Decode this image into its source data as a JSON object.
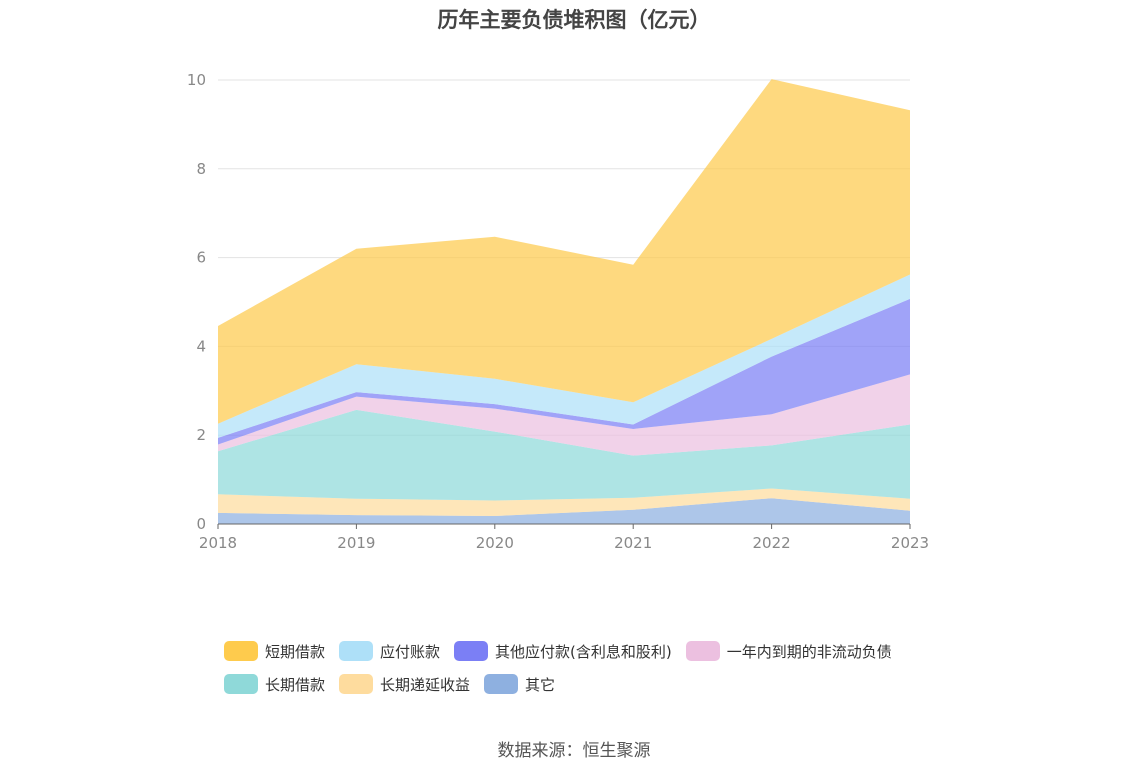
{
  "title": "历年主要负债堆积图（亿元）",
  "source": "数据来源：恒生聚源",
  "chart_data": {
    "type": "area",
    "stacked": true,
    "categories": [
      "2018",
      "2019",
      "2020",
      "2021",
      "2022",
      "2023"
    ],
    "ylim": [
      0,
      10
    ],
    "yticks": [
      "0",
      "2",
      "4",
      "6",
      "8",
      "10"
    ],
    "grid": true,
    "legend_position": "bottom",
    "series": [
      {
        "name": "其它",
        "color": "#8eb0e0",
        "values": [
          0.25,
          0.2,
          0.18,
          0.32,
          0.58,
          0.3
        ]
      },
      {
        "name": "长期递延收益",
        "color": "#fedc9e",
        "values": [
          0.42,
          0.37,
          0.35,
          0.27,
          0.22,
          0.27
        ]
      },
      {
        "name": "长期借款",
        "color": "#8fd9d9",
        "values": [
          0.97,
          2.0,
          1.55,
          0.95,
          0.97,
          1.67
        ]
      },
      {
        "name": "一年内到期的非流动负债",
        "color": "#ecc0e0",
        "values": [
          0.15,
          0.3,
          0.52,
          0.6,
          0.7,
          1.13
        ]
      },
      {
        "name": "其他应付款(含利息和股利)",
        "color": "#7b7ff5",
        "values": [
          0.15,
          0.1,
          0.1,
          0.1,
          1.3,
          1.7
        ]
      },
      {
        "name": "应付账款",
        "color": "#aee0f8",
        "values": [
          0.32,
          0.63,
          0.57,
          0.5,
          0.4,
          0.55
        ]
      },
      {
        "name": "短期借款",
        "color": "#fecb4d",
        "values": [
          2.2,
          2.6,
          3.2,
          3.1,
          5.85,
          3.7
        ]
      }
    ],
    "legend_rows": [
      [
        "短期借款",
        "应付账款",
        "其他应付款(含利息和股利)",
        "一年内到期的非流动负债"
      ],
      [
        "长期借款",
        "长期递延收益",
        "其它"
      ]
    ]
  }
}
